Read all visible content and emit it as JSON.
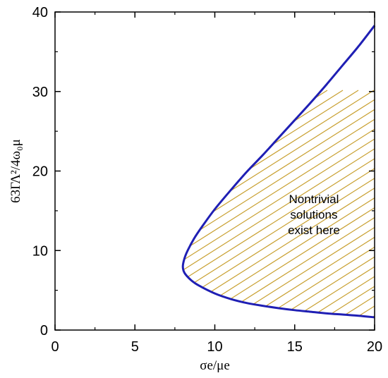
{
  "chart_data": {
    "type": "line",
    "title": "",
    "xlabel": "σe/μe",
    "ylabel": "63ΓΛ²/4ω₀μ",
    "xlim": [
      0,
      20
    ],
    "ylim": [
      0,
      40
    ],
    "x_ticks": [
      0,
      5,
      10,
      15,
      20
    ],
    "y_ticks": [
      0,
      10,
      20,
      30,
      40
    ],
    "grid": false,
    "series": [
      {
        "color": "#1f1fb4",
        "points": [
          [
            20.0,
            1.6
          ],
          [
            19.0,
            1.8
          ],
          [
            18.0,
            1.95
          ],
          [
            17.0,
            2.1
          ],
          [
            16.0,
            2.3
          ],
          [
            15.0,
            2.5
          ],
          [
            14.0,
            2.75
          ],
          [
            13.0,
            3.05
          ],
          [
            12.0,
            3.4
          ],
          [
            11.0,
            3.9
          ],
          [
            10.0,
            4.6
          ],
          [
            9.0,
            5.6
          ],
          [
            8.5,
            6.3
          ],
          [
            8.1,
            7.2
          ],
          [
            8.0,
            8.0
          ],
          [
            8.1,
            9.0
          ],
          [
            8.3,
            10.0
          ],
          [
            8.7,
            11.5
          ],
          [
            9.2,
            13.0
          ],
          [
            10.0,
            15.2
          ],
          [
            11.0,
            17.6
          ],
          [
            12.0,
            19.9
          ],
          [
            13.0,
            22.0
          ],
          [
            14.0,
            24.2
          ],
          [
            15.0,
            26.4
          ],
          [
            16.0,
            28.6
          ],
          [
            17.0,
            30.9
          ],
          [
            18.0,
            33.3
          ],
          [
            19.0,
            35.7
          ],
          [
            20.0,
            38.3
          ]
        ]
      }
    ],
    "shaded_region": {
      "description_label": "Nontrivial solutions exist here",
      "hatch_color": "#c8a030"
    },
    "annotations": [
      {
        "lines": [
          "Nontrivial",
          "solutions",
          "exist here"
        ],
        "x": 16.2,
        "y": 14.0
      }
    ]
  }
}
